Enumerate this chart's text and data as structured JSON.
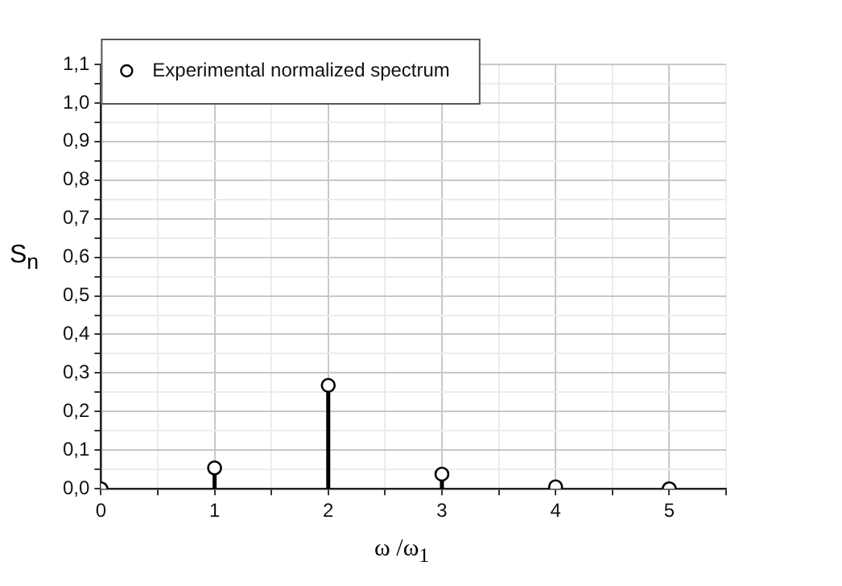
{
  "chart_data": {
    "type": "lollipop",
    "xlabel": "ω /ω$_{1}$",
    "ylabel": "S$_{n}$",
    "x": [
      0,
      1,
      2,
      3,
      4,
      5
    ],
    "series": [
      {
        "name": "Experimental normalized spectrum",
        "color": "#000000",
        "values": [
          0,
          0.054,
          0.268,
          0.038,
          0.005,
          0.0
        ]
      }
    ],
    "xlim": [
      0,
      5.5
    ],
    "xticks": [
      0,
      {
        "value": 0.5,
        "label": null
      },
      1,
      {
        "value": 1.5,
        "label": null
      },
      2,
      {
        "value": 2.5,
        "label": null
      },
      3,
      {
        "value": 3.5,
        "label": null
      },
      4,
      {
        "value": 4.5,
        "label": null
      },
      5,
      {
        "value": 5.5,
        "label": null
      }
    ],
    "ylim": [
      0,
      1.1
    ],
    "yticks": [
      {
        "value": 0,
        "label": "0,0"
      },
      {
        "value": 0.05,
        "label": null
      },
      {
        "value": 0.1,
        "label": "0,1"
      },
      {
        "value": 0.15,
        "label": null
      },
      {
        "value": 0.2,
        "label": "0,2"
      },
      {
        "value": 0.25,
        "label": null
      },
      {
        "value": 0.3,
        "label": "0,3"
      },
      {
        "value": 0.35,
        "label": null
      },
      {
        "value": 0.4,
        "label": "0,4"
      },
      {
        "value": 0.45,
        "label": null
      },
      {
        "value": 0.5,
        "label": "0,5"
      },
      {
        "value": 0.55,
        "label": null
      },
      {
        "value": 0.6,
        "label": "0,6"
      },
      {
        "value": 0.65,
        "label": null
      },
      {
        "value": 0.7,
        "label": "0,7"
      },
      {
        "value": 0.75,
        "label": null
      },
      {
        "value": 0.8,
        "label": "0,8"
      },
      {
        "value": 0.85,
        "label": null
      },
      {
        "value": 0.9,
        "label": "0,9"
      },
      {
        "value": 0.95,
        "label": null
      },
      {
        "value": 1.0,
        "label": "1,0"
      },
      {
        "value": 1.05,
        "label": null
      },
      {
        "value": 1.1,
        "label": "1,1"
      }
    ],
    "grid": true,
    "legend": "top left",
    "marker": "circle"
  }
}
